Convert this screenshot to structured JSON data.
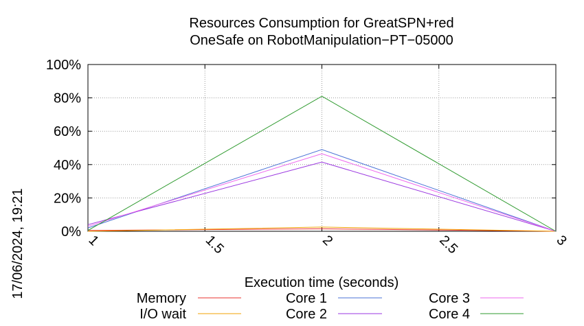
{
  "side_label": "17/06/2024, 19:21",
  "chart_data": {
    "type": "line",
    "title_lines": [
      "Resources Consumption for GreatSPN+red",
      "OneSafe on RobotManipulation−PT−05000"
    ],
    "xlabel": "Execution time (seconds)",
    "ylabel": "",
    "xlim": [
      1,
      3
    ],
    "ylim": [
      0,
      100
    ],
    "x_ticks": [
      {
        "value": 1,
        "label": "1"
      },
      {
        "value": 1.5,
        "label": "1.5"
      },
      {
        "value": 2,
        "label": "2"
      },
      {
        "value": 2.5,
        "label": "2.5"
      },
      {
        "value": 3,
        "label": "3"
      }
    ],
    "y_ticks": [
      {
        "value": 0,
        "label": "0%"
      },
      {
        "value": 20,
        "label": "20%"
      },
      {
        "value": 40,
        "label": "40%"
      },
      {
        "value": 60,
        "label": "60%"
      },
      {
        "value": 80,
        "label": "80%"
      },
      {
        "value": 100,
        "label": "100%"
      }
    ],
    "grid": true,
    "legend_position": "bottom",
    "x": [
      1,
      2,
      3
    ],
    "series": [
      {
        "name": "Memory",
        "color": "#e8302c",
        "values": [
          0.5,
          1.5,
          0
        ]
      },
      {
        "name": "I/O wait",
        "color": "#f0a000",
        "values": [
          0,
          2.5,
          0
        ]
      },
      {
        "name": "Core 1",
        "color": "#4a72d6",
        "values": [
          2,
          49,
          0
        ]
      },
      {
        "name": "Core 2",
        "color": "#9a36e0",
        "values": [
          4,
          41.5,
          0
        ]
      },
      {
        "name": "Core 3",
        "color": "#ee66ee",
        "values": [
          3,
          46.5,
          0
        ]
      },
      {
        "name": "Core 4",
        "color": "#2e9a2e",
        "values": [
          0.5,
          81,
          0
        ]
      }
    ]
  }
}
